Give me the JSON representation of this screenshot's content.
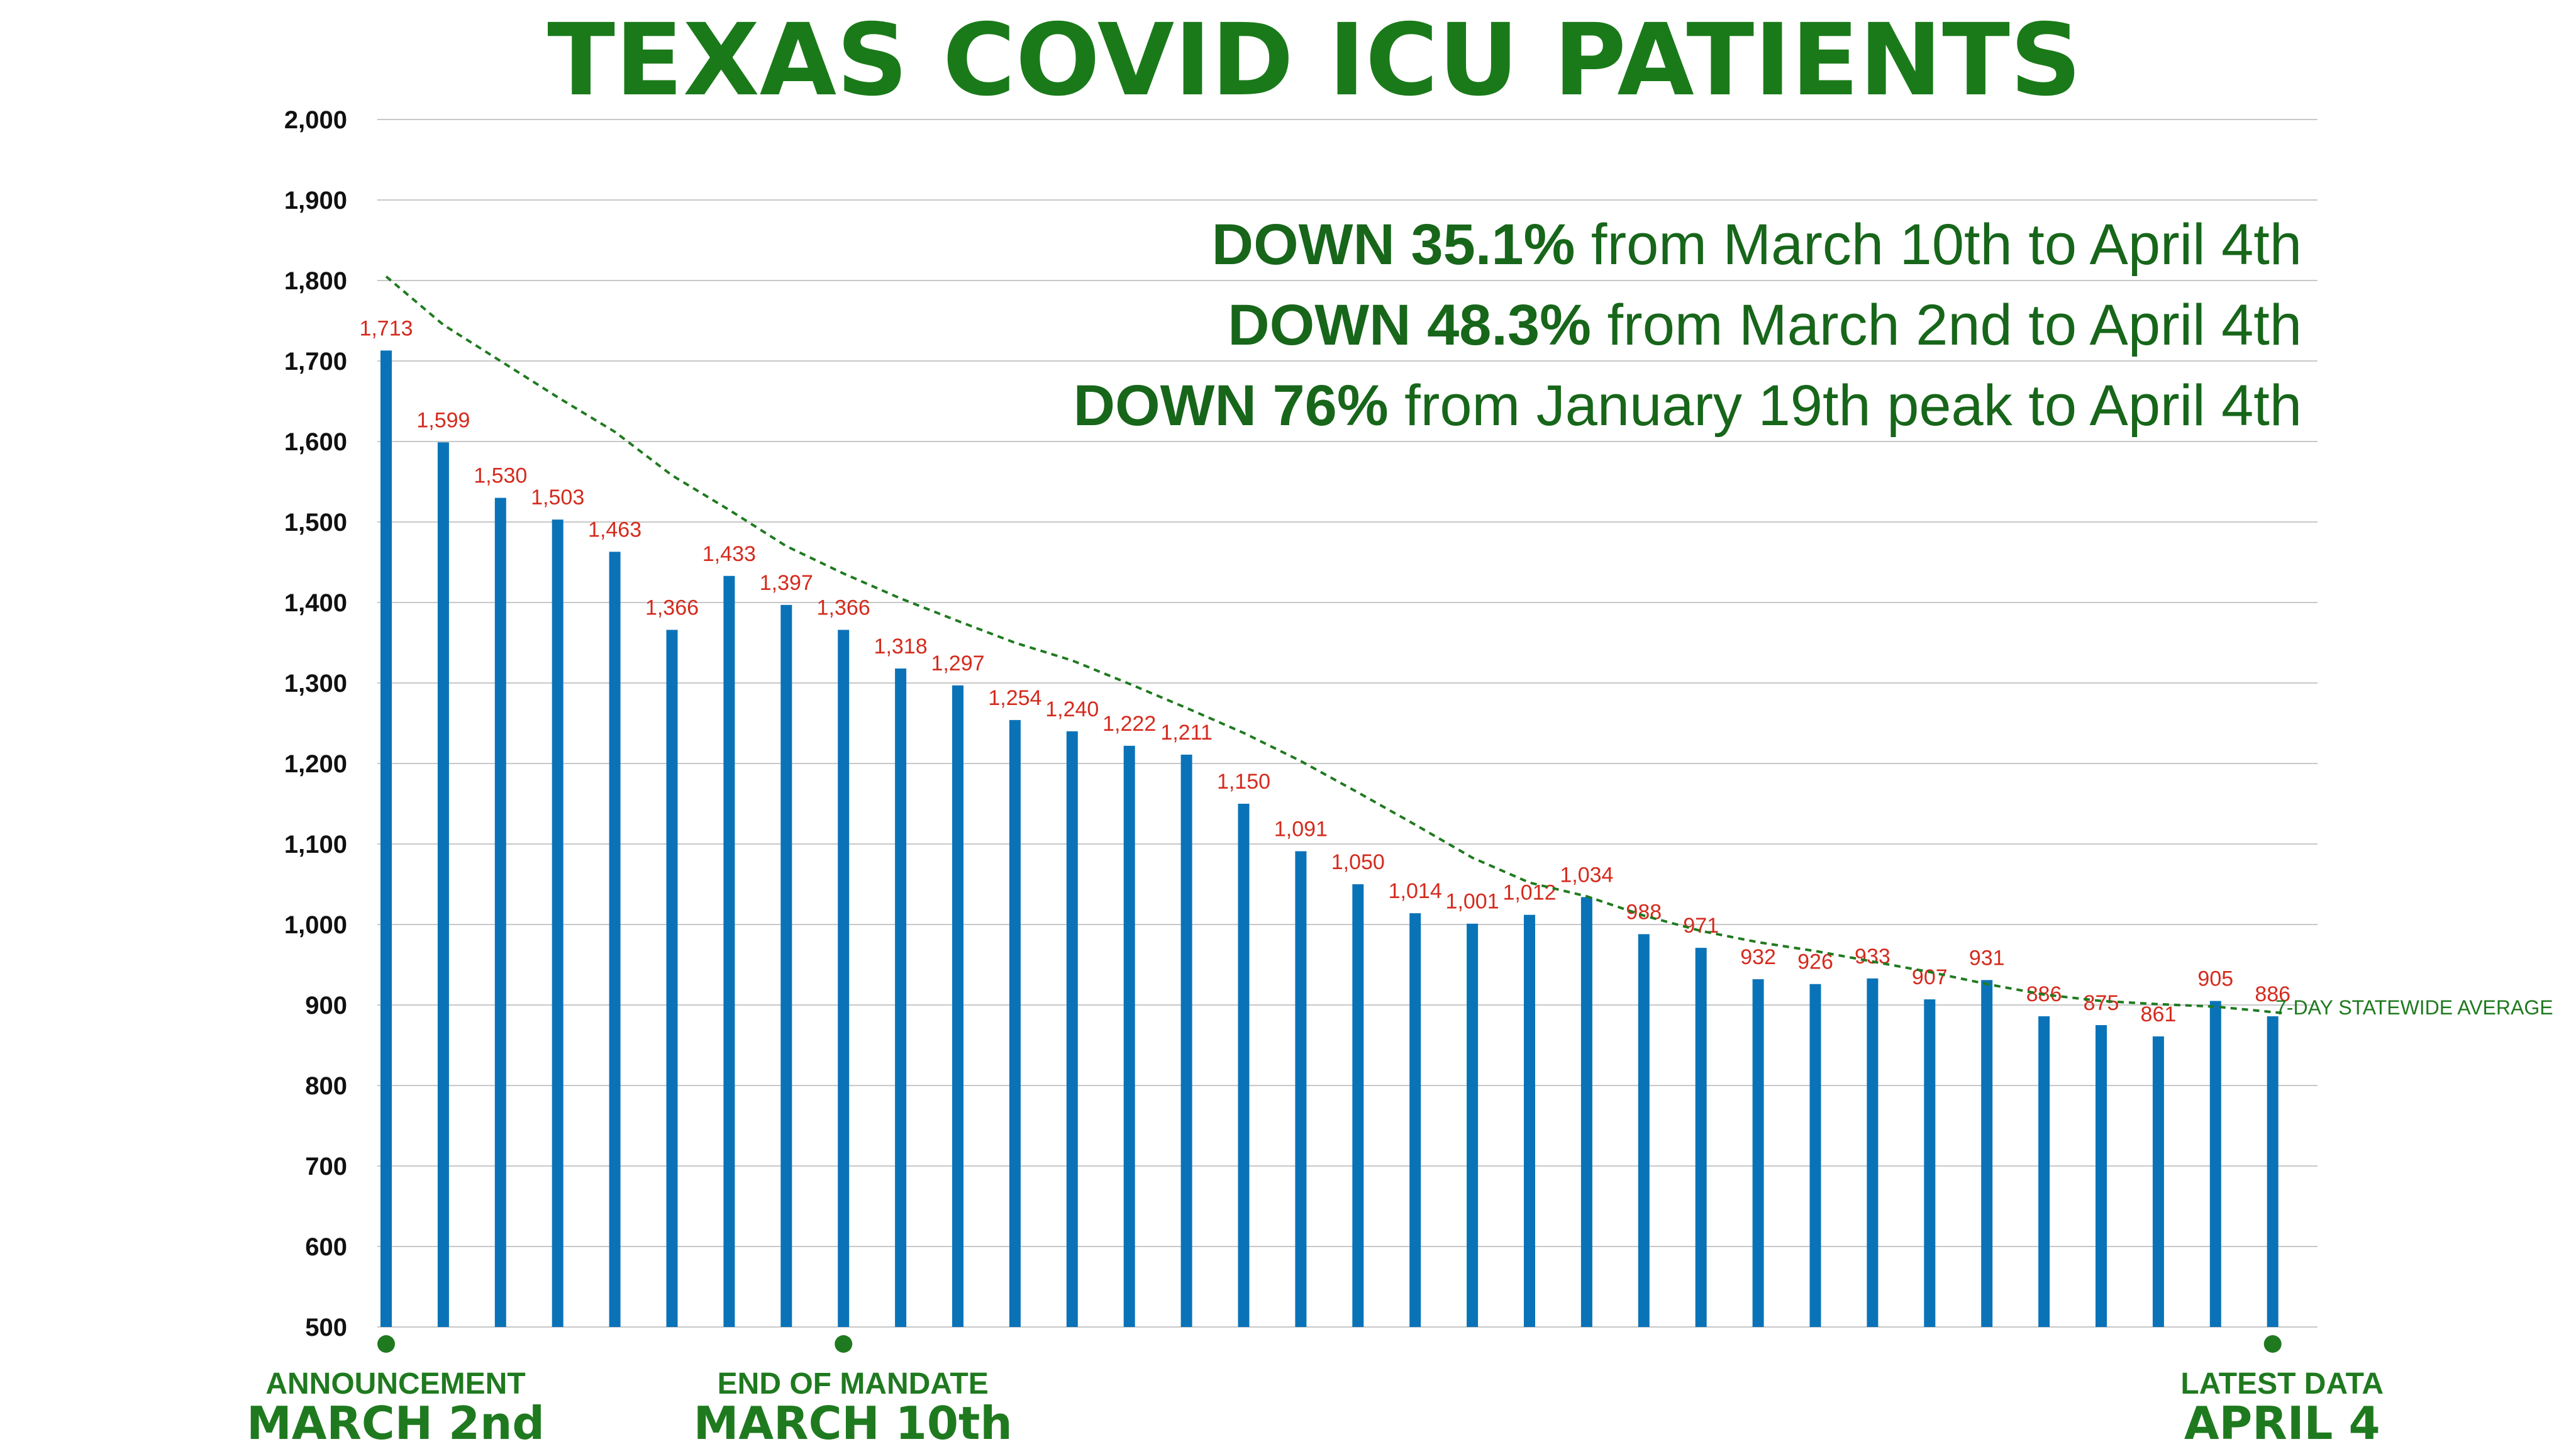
{
  "chart_data": {
    "type": "bar",
    "title": "TEXAS COVID ICU PATIENTS",
    "ylim": [
      500,
      2000
    ],
    "yticks": [
      "2,000",
      "1,900",
      "1,800",
      "1,700",
      "1,600",
      "1,500",
      "1,400",
      "1,300",
      "1,200",
      "1,100",
      "1,000",
      "900",
      "800",
      "700",
      "600",
      "500"
    ],
    "grid": true,
    "bar_color": "#0a73b8",
    "label_color": "#d42b1e",
    "values": [
      1713,
      1599,
      1530,
      1503,
      1463,
      1366,
      1433,
      1397,
      1366,
      1318,
      1297,
      1254,
      1240,
      1222,
      1211,
      1150,
      1091,
      1050,
      1014,
      1001,
      1012,
      1034,
      988,
      971,
      932,
      926,
      933,
      907,
      931,
      886,
      875,
      861,
      905,
      886
    ],
    "value_labels": [
      "1,713",
      "1,599",
      "1,530",
      "1,503",
      "1,463",
      "1,366",
      "1,433",
      "1,397",
      "1,366",
      "1,318",
      "1,297",
      "1,254",
      "1,240",
      "1,222",
      "1,211",
      "1,150",
      "1,091",
      "1,050",
      "1,014",
      "1,001",
      "1,012",
      "1,034",
      "988",
      "971",
      "932",
      "926",
      "933",
      "907",
      "931",
      "886",
      "875",
      "861",
      "905",
      "886"
    ],
    "average_line": {
      "label": "7-DAY STATEWIDE AVERAGE",
      "color": "#1f7a1f",
      "values": [
        1805,
        1745,
        1700,
        1655,
        1612,
        1558,
        1515,
        1470,
        1436,
        1405,
        1377,
        1350,
        1328,
        1299,
        1269,
        1238,
        1203,
        1164,
        1124,
        1083,
        1052,
        1035,
        1011,
        992,
        978,
        967,
        954,
        941,
        926,
        913,
        905,
        901,
        898,
        890
      ]
    },
    "markers": [
      {
        "index": 0,
        "line1": "ANNOUNCEMENT",
        "line2": "MARCH 2nd"
      },
      {
        "index": 8,
        "line1": "END OF MANDATE",
        "line2": "MARCH 10th"
      },
      {
        "index": 33,
        "line1": "LATEST DATA",
        "line2": "APRIL 4"
      }
    ],
    "annotations": [
      {
        "strong": "DOWN 35.1%",
        "rest": " from March 10th to April 4th"
      },
      {
        "strong": "DOWN 48.3%",
        "rest": " from March 2nd to April 4th"
      },
      {
        "strong": "DOWN 76%",
        "rest": " from January 19th peak to April 4th"
      }
    ]
  }
}
